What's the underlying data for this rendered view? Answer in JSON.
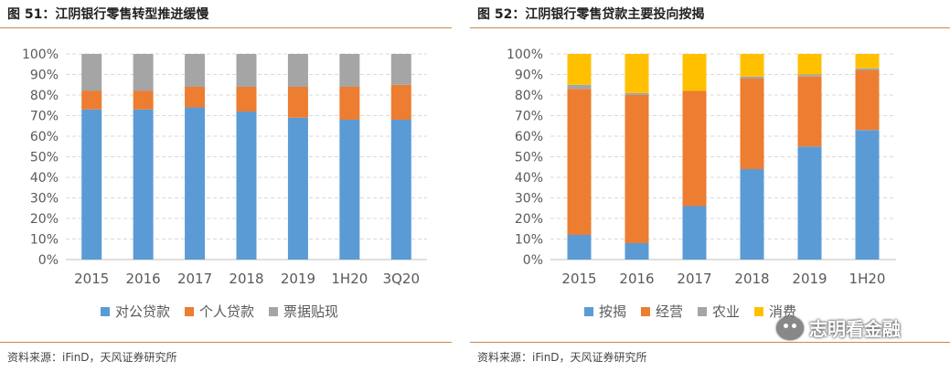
{
  "left": {
    "figure_title": "图 51：江阴银行零售转型推进缓慢",
    "source": "资料来源：iFinD，天风证券研究所"
  },
  "right": {
    "figure_title": "图 52：江阴银行零售贷款主要投向按揭",
    "source": "资料来源：iFinD，天风证券研究所"
  },
  "watermark": {
    "text": "志明看金融",
    "icon": "wechat-icon"
  },
  "colors": {
    "blue": "#5b9bd5",
    "orange": "#ed7d31",
    "gray": "#a5a5a5",
    "yellow": "#ffc000",
    "rule": "#c8894a"
  },
  "chart_data": [
    {
      "type": "bar",
      "stacked": true,
      "title": "图 51：江阴银行零售转型推进缓慢",
      "categories": [
        "2015",
        "2016",
        "2017",
        "2018",
        "2019",
        "1H20",
        "3Q20"
      ],
      "y_ticks": [
        "0%",
        "10%",
        "20%",
        "30%",
        "40%",
        "50%",
        "60%",
        "70%",
        "80%",
        "90%",
        "100%"
      ],
      "ylim": [
        0,
        100
      ],
      "grid": true,
      "legend_position": "bottom",
      "series": [
        {
          "name": "对公贷款",
          "color": "#5b9bd5",
          "values": [
            73,
            73,
            74,
            72,
            69,
            68,
            68
          ]
        },
        {
          "name": "个人贷款",
          "color": "#ed7d31",
          "values": [
            9,
            9,
            10,
            12,
            15,
            16,
            17
          ]
        },
        {
          "name": "票据贴现",
          "color": "#a5a5a5",
          "values": [
            18,
            18,
            16,
            16,
            16,
            16,
            15
          ]
        }
      ]
    },
    {
      "type": "bar",
      "stacked": true,
      "title": "图 52：江阴银行零售贷款主要投向按揭",
      "categories": [
        "2015",
        "2016",
        "2017",
        "2018",
        "2019",
        "1H20"
      ],
      "y_ticks": [
        "0%",
        "10%",
        "20%",
        "30%",
        "40%",
        "50%",
        "60%",
        "70%",
        "80%",
        "90%",
        "100%"
      ],
      "ylim": [
        0,
        100
      ],
      "grid": true,
      "legend_position": "bottom",
      "series": [
        {
          "name": "按揭",
          "color": "#5b9bd5",
          "values": [
            12,
            8,
            26,
            44,
            55,
            63
          ]
        },
        {
          "name": "经营",
          "color": "#ed7d31",
          "values": [
            71,
            72,
            56,
            44,
            34,
            29
          ]
        },
        {
          "name": "农业",
          "color": "#a5a5a5",
          "values": [
            2,
            1,
            0,
            1,
            1,
            1
          ]
        },
        {
          "name": "消费",
          "color": "#ffc000",
          "values": [
            15,
            19,
            18,
            11,
            10,
            7
          ]
        }
      ]
    }
  ]
}
